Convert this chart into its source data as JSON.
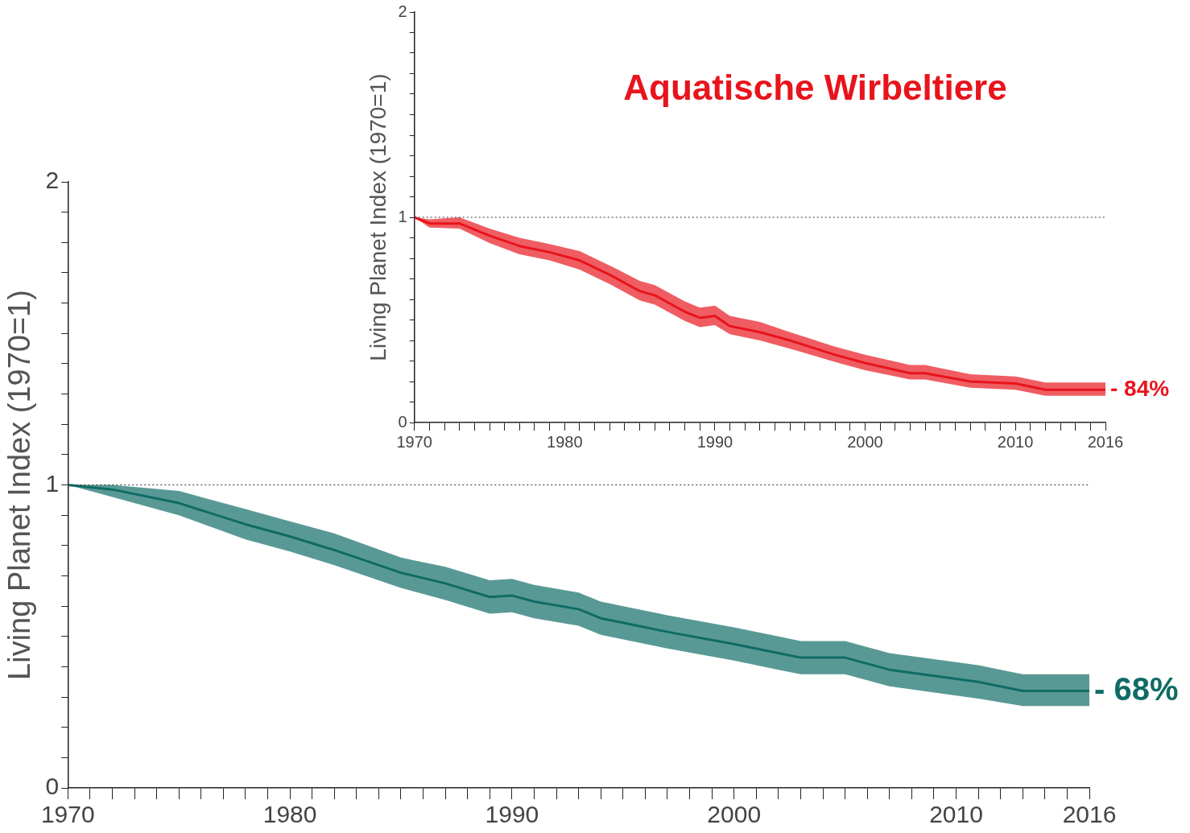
{
  "chart_data": [
    {
      "type": "line",
      "ylabel": "Living Planet Index (1970=1)",
      "x": [
        1970,
        1972,
        1975,
        1978,
        1980,
        1982,
        1985,
        1987,
        1989,
        1990,
        1991,
        1993,
        1994,
        1997,
        2000,
        2002,
        2003,
        2005,
        2007,
        2010,
        2011,
        2013,
        2015,
        2016
      ],
      "series": [
        {
          "color": "#0f6b66",
          "values": [
            1.0,
            0.985,
            0.94,
            0.87,
            0.83,
            0.785,
            0.71,
            0.675,
            0.63,
            0.635,
            0.615,
            0.59,
            0.56,
            0.515,
            0.475,
            0.445,
            0.43,
            0.43,
            0.39,
            0.36,
            0.35,
            0.32,
            0.32,
            0.32
          ],
          "lower": [
            1.0,
            0.96,
            0.9,
            0.82,
            0.78,
            0.735,
            0.66,
            0.62,
            0.575,
            0.58,
            0.56,
            0.535,
            0.505,
            0.46,
            0.42,
            0.39,
            0.375,
            0.375,
            0.335,
            0.305,
            0.295,
            0.27,
            0.27,
            0.27
          ],
          "upper": [
            1.0,
            1.0,
            0.98,
            0.92,
            0.88,
            0.84,
            0.76,
            0.73,
            0.685,
            0.69,
            0.67,
            0.645,
            0.615,
            0.57,
            0.53,
            0.5,
            0.485,
            0.485,
            0.445,
            0.415,
            0.405,
            0.375,
            0.375,
            0.375
          ]
        }
      ],
      "xlim": [
        1970,
        2016
      ],
      "ylim": [
        0,
        2
      ],
      "xticks": [
        1970,
        {
          "value": 1971,
          "label": null
        },
        {
          "value": 1972,
          "label": null
        },
        {
          "value": 1973,
          "label": null
        },
        {
          "value": 1974,
          "label": null
        },
        {
          "value": 1975,
          "label": null
        },
        {
          "value": 1976,
          "label": null
        },
        {
          "value": 1977,
          "label": null
        },
        {
          "value": 1978,
          "label": null
        },
        {
          "value": 1979,
          "label": null
        },
        1980,
        {
          "value": 1981,
          "label": null
        },
        {
          "value": 1982,
          "label": null
        },
        {
          "value": 1983,
          "label": null
        },
        {
          "value": 1984,
          "label": null
        },
        {
          "value": 1985,
          "label": null
        },
        {
          "value": 1986,
          "label": null
        },
        {
          "value": 1987,
          "label": null
        },
        {
          "value": 1988,
          "label": null
        },
        {
          "value": 1989,
          "label": null
        },
        1990,
        {
          "value": 1991,
          "label": null
        },
        {
          "value": 1992,
          "label": null
        },
        {
          "value": 1993,
          "label": null
        },
        {
          "value": 1994,
          "label": null
        },
        {
          "value": 1995,
          "label": null
        },
        {
          "value": 1996,
          "label": null
        },
        {
          "value": 1997,
          "label": null
        },
        {
          "value": 1998,
          "label": null
        },
        {
          "value": 1999,
          "label": null
        },
        2000,
        {
          "value": 2001,
          "label": null
        },
        {
          "value": 2002,
          "label": null
        },
        {
          "value": 2003,
          "label": null
        },
        {
          "value": 2004,
          "label": null
        },
        {
          "value": 2005,
          "label": null
        },
        {
          "value": 2006,
          "label": null
        },
        {
          "value": 2007,
          "label": null
        },
        {
          "value": 2008,
          "label": null
        },
        {
          "value": 2009,
          "label": null
        },
        2010,
        {
          "value": 2011,
          "label": null
        },
        {
          "value": 2012,
          "label": null
        },
        {
          "value": 2013,
          "label": null
        },
        {
          "value": 2014,
          "label": null
        },
        {
          "value": 2015,
          "label": null
        },
        2016
      ],
      "yticks": [
        0,
        {
          "value": 0.1,
          "label": null
        },
        {
          "value": 0.2,
          "label": null
        },
        {
          "value": 0.3,
          "label": null
        },
        {
          "value": 0.4,
          "label": null
        },
        {
          "value": 0.5,
          "label": null
        },
        {
          "value": 0.6,
          "label": null
        },
        {
          "value": 0.7,
          "label": null
        },
        {
          "value": 0.8,
          "label": null
        },
        {
          "value": 0.9,
          "label": null
        },
        1,
        {
          "value": 1.1,
          "label": null
        },
        {
          "value": 1.2,
          "label": null
        },
        {
          "value": 1.3,
          "label": null
        },
        {
          "value": 1.4,
          "label": null
        },
        {
          "value": 1.5,
          "label": null
        },
        {
          "value": 1.6,
          "label": null
        },
        {
          "value": 1.7,
          "label": null
        },
        {
          "value": 1.8,
          "label": null
        },
        {
          "value": 1.9,
          "label": null
        },
        2
      ],
      "ref_lines": [
        {
          "axis": "y",
          "value": 1,
          "line_style": "dotted"
        }
      ],
      "annotations": [
        {
          "text": "- 68%",
          "x": 2016,
          "y": 0.32
        }
      ],
      "grid": false,
      "legend": false,
      "marker": "none"
    },
    {
      "type": "line",
      "title": "Aquatische Wirbeltiere",
      "ylabel": "Living Planet Index (1970=1)",
      "x": [
        1970,
        1971,
        1973,
        1975,
        1977,
        1979,
        1981,
        1983,
        1985,
        1986,
        1988,
        1989,
        1990,
        1991,
        1993,
        1995,
        1998,
        2000,
        2003,
        2004,
        2007,
        2010,
        2012,
        2016
      ],
      "series": [
        {
          "color": "#e8141c",
          "values": [
            1.0,
            0.97,
            0.97,
            0.91,
            0.86,
            0.83,
            0.79,
            0.72,
            0.64,
            0.62,
            0.54,
            0.51,
            0.52,
            0.47,
            0.44,
            0.4,
            0.33,
            0.29,
            0.24,
            0.24,
            0.2,
            0.19,
            0.16,
            0.16
          ],
          "lower": [
            1.0,
            0.95,
            0.945,
            0.875,
            0.82,
            0.79,
            0.745,
            0.675,
            0.595,
            0.575,
            0.495,
            0.465,
            0.475,
            0.43,
            0.4,
            0.36,
            0.295,
            0.255,
            0.21,
            0.21,
            0.17,
            0.16,
            0.13,
            0.13
          ],
          "upper": [
            1.0,
            0.99,
            1.0,
            0.945,
            0.9,
            0.87,
            0.835,
            0.765,
            0.69,
            0.67,
            0.59,
            0.56,
            0.57,
            0.52,
            0.49,
            0.44,
            0.37,
            0.33,
            0.28,
            0.28,
            0.235,
            0.225,
            0.195,
            0.195
          ]
        }
      ],
      "xlim": [
        1970,
        2016
      ],
      "ylim": [
        0,
        2
      ],
      "xticks": [
        1970,
        {
          "value": 1971,
          "label": null
        },
        {
          "value": 1972,
          "label": null
        },
        {
          "value": 1973,
          "label": null
        },
        {
          "value": 1974,
          "label": null
        },
        {
          "value": 1975,
          "label": null
        },
        {
          "value": 1976,
          "label": null
        },
        {
          "value": 1977,
          "label": null
        },
        {
          "value": 1978,
          "label": null
        },
        {
          "value": 1979,
          "label": null
        },
        1980,
        {
          "value": 1981,
          "label": null
        },
        {
          "value": 1982,
          "label": null
        },
        {
          "value": 1983,
          "label": null
        },
        {
          "value": 1984,
          "label": null
        },
        {
          "value": 1985,
          "label": null
        },
        {
          "value": 1986,
          "label": null
        },
        {
          "value": 1987,
          "label": null
        },
        {
          "value": 1988,
          "label": null
        },
        {
          "value": 1989,
          "label": null
        },
        1990,
        {
          "value": 1991,
          "label": null
        },
        {
          "value": 1992,
          "label": null
        },
        {
          "value": 1993,
          "label": null
        },
        {
          "value": 1994,
          "label": null
        },
        {
          "value": 1995,
          "label": null
        },
        {
          "value": 1996,
          "label": null
        },
        {
          "value": 1997,
          "label": null
        },
        {
          "value": 1998,
          "label": null
        },
        {
          "value": 1999,
          "label": null
        },
        2000,
        {
          "value": 2001,
          "label": null
        },
        {
          "value": 2002,
          "label": null
        },
        {
          "value": 2003,
          "label": null
        },
        {
          "value": 2004,
          "label": null
        },
        {
          "value": 2005,
          "label": null
        },
        {
          "value": 2006,
          "label": null
        },
        {
          "value": 2007,
          "label": null
        },
        {
          "value": 2008,
          "label": null
        },
        {
          "value": 2009,
          "label": null
        },
        2010,
        {
          "value": 2011,
          "label": null
        },
        {
          "value": 2012,
          "label": null
        },
        {
          "value": 2013,
          "label": null
        },
        {
          "value": 2014,
          "label": null
        },
        {
          "value": 2015,
          "label": null
        },
        2016
      ],
      "yticks": [
        0,
        {
          "value": 0.1,
          "label": null
        },
        {
          "value": 0.2,
          "label": null
        },
        {
          "value": 0.3,
          "label": null
        },
        {
          "value": 0.4,
          "label": null
        },
        {
          "value": 0.5,
          "label": null
        },
        {
          "value": 0.6,
          "label": null
        },
        {
          "value": 0.7,
          "label": null
        },
        {
          "value": 0.8,
          "label": null
        },
        {
          "value": 0.9,
          "label": null
        },
        1,
        {
          "value": 1.1,
          "label": null
        },
        {
          "value": 1.2,
          "label": null
        },
        {
          "value": 1.3,
          "label": null
        },
        {
          "value": 1.4,
          "label": null
        },
        {
          "value": 1.5,
          "label": null
        },
        {
          "value": 1.6,
          "label": null
        },
        {
          "value": 1.7,
          "label": null
        },
        {
          "value": 1.8,
          "label": null
        },
        {
          "value": 1.9,
          "label": null
        },
        2
      ],
      "ref_lines": [
        {
          "axis": "y",
          "value": 1,
          "line_style": "dotted"
        }
      ],
      "annotations": [
        {
          "text": "- 84%",
          "x": 2016,
          "y": 0.16
        }
      ],
      "grid": false,
      "legend": false,
      "marker": "none"
    }
  ]
}
